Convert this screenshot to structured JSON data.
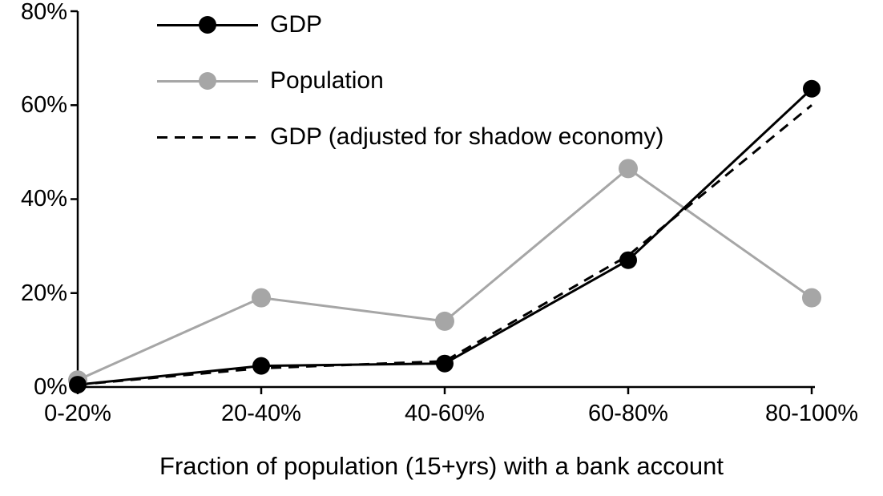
{
  "chart_data": {
    "type": "line",
    "title": "",
    "xlabel": "Fraction of population (15+yrs) with a bank account",
    "ylabel": "",
    "categories": [
      "0-20%",
      "20-40%",
      "40-60%",
      "60-80%",
      "80-100%"
    ],
    "series": [
      {
        "name": "GDP",
        "values": [
          0.5,
          4.5,
          5,
          27,
          63.5
        ],
        "color": "#000000",
        "style": "solid",
        "marker": true
      },
      {
        "name": "Population",
        "values": [
          1.5,
          19,
          14,
          46.5,
          19
        ],
        "color": "#a6a6a6",
        "style": "solid",
        "marker": true
      },
      {
        "name": "GDP (adjusted for shadow economy)",
        "values": [
          0.5,
          4,
          5.5,
          28,
          60
        ],
        "color": "#000000",
        "style": "dashed",
        "marker": false
      }
    ],
    "ylim": [
      0,
      80
    ],
    "ytick_values": [
      0,
      20,
      40,
      60,
      80
    ],
    "yticks": [
      "0%",
      "20%",
      "40%",
      "60%",
      "80%"
    ],
    "grid": false,
    "legend_position": "top-left",
    "axis_color": "#000000"
  }
}
